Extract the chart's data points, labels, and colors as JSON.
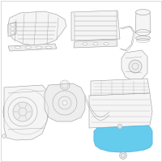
{
  "bg_color": "#ffffff",
  "border_color": "#cccccc",
  "lc": "#999999",
  "lc2": "#aaaaaa",
  "fc": "#f5f5f5",
  "fc2": "#eeeeee",
  "hlc": "#5bbcdd",
  "hlf": "#66ccee",
  "lw": 0.4,
  "figsize": [
    2.0,
    2.0
  ],
  "dpi": 100
}
